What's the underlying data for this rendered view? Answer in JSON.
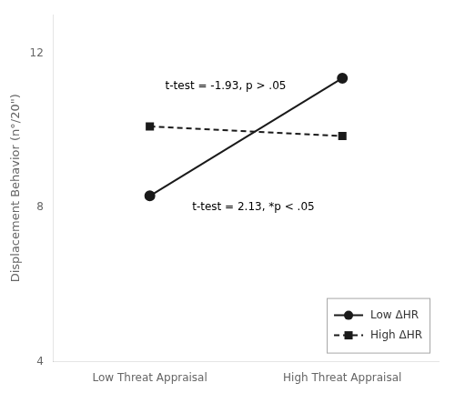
{
  "chart_data": {
    "type": "line",
    "categories": [
      "Low Threat Appraisal",
      "High Threat Appraisal"
    ],
    "series": [
      {
        "name": "Low ΔHR",
        "color": "#1a1a1a",
        "values": [
          8.3,
          11.35
        ],
        "marker": "circle",
        "line_style": "solid"
      },
      {
        "name": "High ΔHR",
        "color": "#1a1a1a",
        "values": [
          10.1,
          9.85
        ],
        "marker": "square",
        "line_style": "dashed"
      }
    ],
    "ylabel": "Displacement Behavior (n°/20\")",
    "ylim": [
      4,
      13
    ],
    "yticks": [
      4,
      8,
      12
    ],
    "annotations": [
      {
        "text": "t-test = -1.93, p > .05",
        "x": 0.08,
        "y": 11.15
      },
      {
        "text": "t-test = 2.13, *p < .05",
        "x": 0.22,
        "y": 8.0
      }
    ],
    "legend": "lower right",
    "grid": false
  }
}
